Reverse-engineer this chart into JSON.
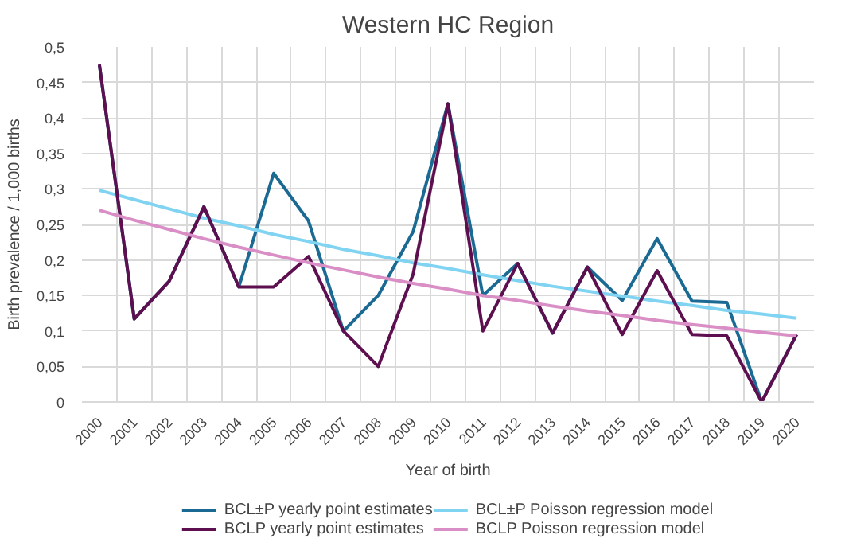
{
  "chart_data": {
    "type": "line",
    "title": "Western HC Region",
    "xlabel": "Year of birth",
    "ylabel": "Birth prevalence / 1,000 births",
    "categories": [
      "2000",
      "2001",
      "2002",
      "2003",
      "2004",
      "2005",
      "2006",
      "2007",
      "2008",
      "2009",
      "2010",
      "2011",
      "2012",
      "2013",
      "2014",
      "2015",
      "2016",
      "2017",
      "2018",
      "2019",
      "2020"
    ],
    "series": [
      {
        "name": "BCL±P yearly point estimates",
        "color": "#1b6a93",
        "values": [
          0.475,
          0.117,
          0.17,
          0.275,
          0.162,
          0.322,
          0.255,
          0.1,
          0.15,
          0.24,
          0.42,
          0.15,
          0.195,
          0.097,
          0.19,
          0.143,
          0.23,
          0.142,
          0.14,
          0,
          0.095
        ]
      },
      {
        "name": "BCL±P Poisson regression model",
        "color": "#80d4f2",
        "values": [
          0.298,
          0.285,
          0.272,
          0.259,
          0.248,
          0.236,
          0.226,
          0.215,
          0.206,
          0.196,
          0.188,
          0.179,
          0.171,
          0.163,
          0.156,
          0.149,
          0.142,
          0.136,
          0.129,
          0.124,
          0.118
        ]
      },
      {
        "name": "BCLP yearly point estimates",
        "color": "#5e0f50",
        "values": [
          0.475,
          0.117,
          0.17,
          0.275,
          0.162,
          0.162,
          0.205,
          0.1,
          0.05,
          0.18,
          0.42,
          0.1,
          0.195,
          0.097,
          0.19,
          0.095,
          0.185,
          0.095,
          0.093,
          0,
          0.095
        ]
      },
      {
        "name": "BCLP Poisson regression model",
        "color": "#d98fc6",
        "values": [
          0.27,
          0.256,
          0.243,
          0.23,
          0.218,
          0.207,
          0.196,
          0.186,
          0.176,
          0.167,
          0.159,
          0.15,
          0.143,
          0.135,
          0.128,
          0.122,
          0.115,
          0.109,
          0.104,
          0.098,
          0.093
        ]
      }
    ],
    "ylim": [
      0,
      0.5
    ],
    "yticks": [
      0,
      {
        "value": 0.05,
        "label": "0,05"
      },
      {
        "value": 0.1,
        "label": "0,1"
      },
      {
        "value": 0.15,
        "label": "0,15"
      },
      {
        "value": 0.2,
        "label": "0,2"
      },
      {
        "value": 0.25,
        "label": "0,25"
      },
      {
        "value": 0.3,
        "label": "0,3"
      },
      {
        "value": 0.35,
        "label": "0,35"
      },
      {
        "value": 0.4,
        "label": "0,4"
      },
      {
        "value": 0.45,
        "label": "0,45"
      },
      {
        "value": 0.5,
        "label": "0,5"
      }
    ],
    "grid": true,
    "legend": "bottom",
    "marker": "none",
    "line_style": "solid"
  }
}
